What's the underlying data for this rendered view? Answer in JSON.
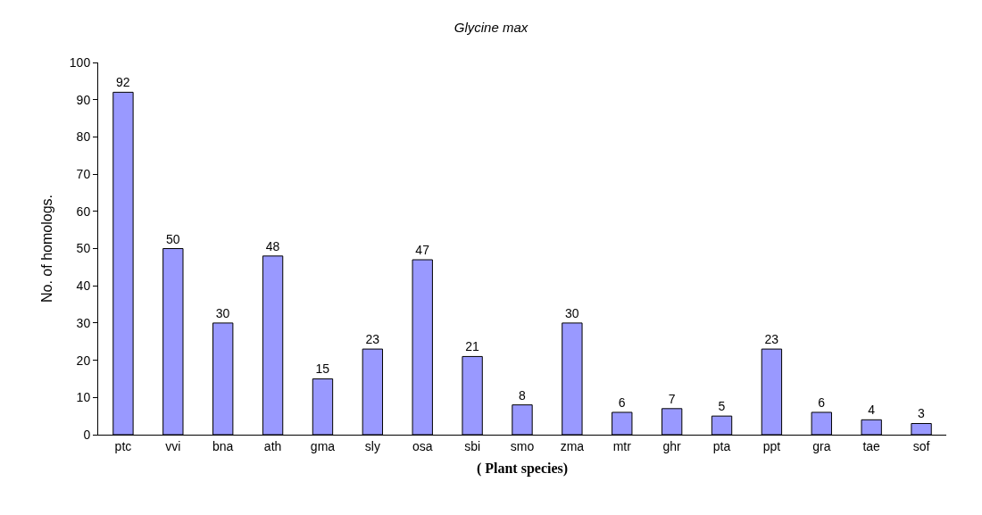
{
  "chart_data": {
    "type": "bar",
    "title": "Glycine max",
    "xlabel": "( Plant species)",
    "ylabel": "No. of homologs.",
    "categories": [
      "ptc",
      "vvi",
      "bna",
      "ath",
      "gma",
      "sly",
      "osa",
      "sbi",
      "smo",
      "zma",
      "mtr",
      "ghr",
      "pta",
      "ppt",
      "gra",
      "tae",
      "sof"
    ],
    "values": [
      92,
      50,
      30,
      48,
      15,
      23,
      47,
      21,
      8,
      30,
      6,
      7,
      5,
      23,
      6,
      4,
      3
    ],
    "color": "#9999ff",
    "ylim": [
      0,
      100
    ],
    "yticks": [
      0,
      10,
      20,
      30,
      40,
      50,
      60,
      70,
      80,
      90,
      100
    ],
    "grid": false,
    "legend": false,
    "data_labels": true
  }
}
